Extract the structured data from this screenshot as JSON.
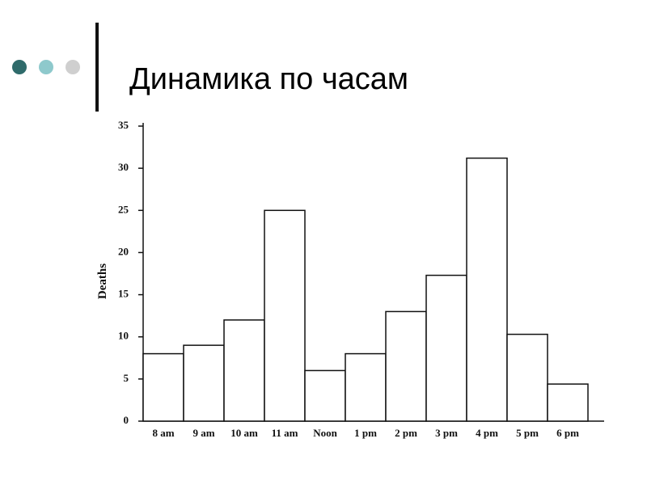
{
  "chart_data": {
    "type": "bar",
    "title": "Динамика по часам",
    "y_label": "Deaths",
    "categories": [
      "8 am",
      "9 am",
      "10 am",
      "11 am",
      "Noon",
      "1 pm",
      "2 pm",
      "3 pm",
      "4 pm",
      "5 pm",
      "6 pm"
    ],
    "values": [
      8,
      9,
      12,
      25,
      6,
      8,
      13,
      17.3,
      31.2,
      10.3,
      4.4
    ],
    "color": "#ffffff",
    "ylim": [
      0,
      35
    ],
    "yticks": [
      0,
      5,
      10,
      15,
      20,
      25,
      30,
      35
    ],
    "grid": false
  }
}
